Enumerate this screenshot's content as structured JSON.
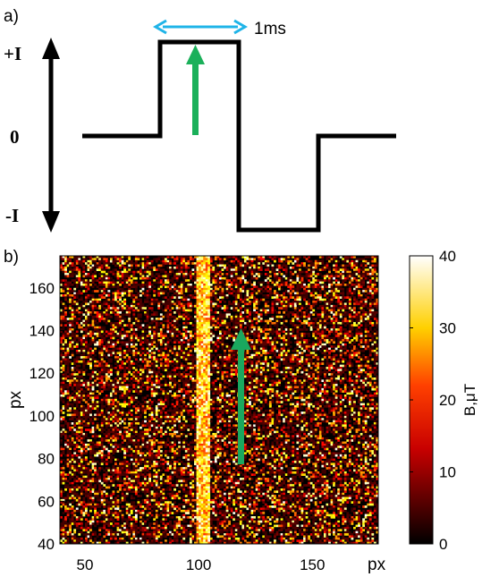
{
  "panel_a": {
    "label": "a)",
    "levels": [
      "+I",
      "0",
      "-I"
    ],
    "duration_label": "1ms",
    "colors": {
      "waveform": "#000000",
      "duration_arrow": "#1fb4e8",
      "direction_arrow": "#1bb05a"
    }
  },
  "panel_b": {
    "label": "b)",
    "colors": {
      "direction_arrow": "#1aa85e"
    }
  },
  "chart_data": {
    "type": "heatmap",
    "xlabel": "px",
    "ylabel": "px",
    "x_ticks": [
      50,
      100,
      150
    ],
    "y_ticks": [
      40,
      60,
      80,
      100,
      120,
      140,
      160
    ],
    "xlim": [
      39,
      179
    ],
    "ylim": [
      40,
      175
    ],
    "colorbar": {
      "label": "B,μT",
      "min": 0,
      "max": 40,
      "ticks": [
        0,
        10,
        20,
        30,
        40
      ],
      "colormap": "hot"
    },
    "features": {
      "bright_column_x": 102
    }
  }
}
